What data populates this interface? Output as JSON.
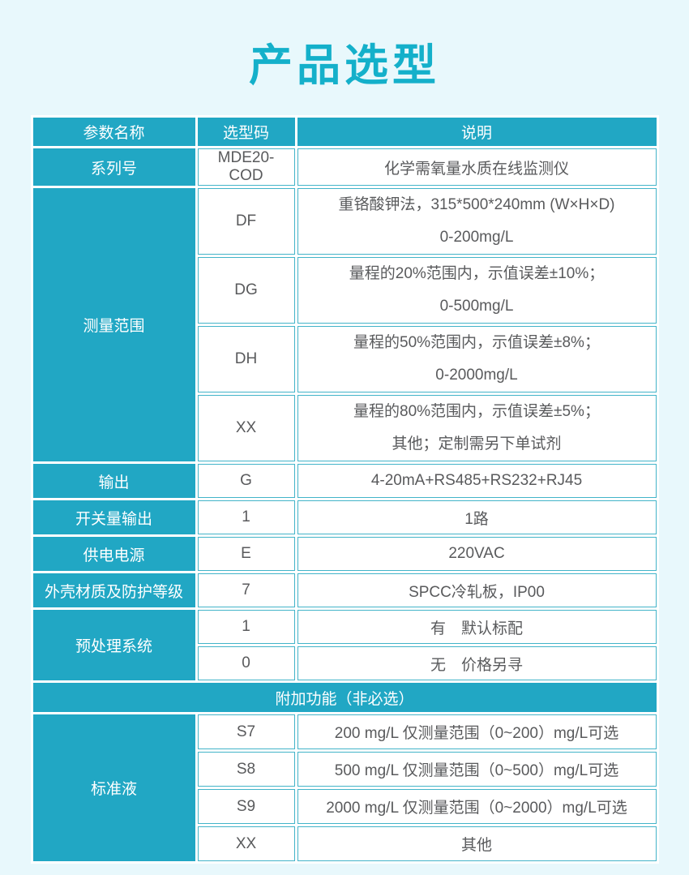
{
  "title": "产品选型",
  "colors": {
    "background": "#e8f8fc",
    "accent_teal": "#21a7c4",
    "title_teal": "#14b0ca",
    "cell_border": "#43b4c9",
    "body_text": "#595a5c"
  },
  "table": {
    "headers": [
      "参数名称",
      "选型码",
      "说明"
    ],
    "groups": [
      {
        "param": "系列号",
        "entries": [
          {
            "code": "MDE20-COD",
            "desc": [
              "化学需氧量水质在线监测仪"
            ]
          }
        ]
      },
      {
        "param": "测量范围",
        "entries": [
          {
            "code": "DF",
            "desc": [
              "重铬酸钾法，315*500*240mm (W×H×D)",
              "0-200mg/L"
            ]
          },
          {
            "code": "DG",
            "desc": [
              "量程的20%范围内，示值误差±10%；",
              "0-500mg/L"
            ]
          },
          {
            "code": "DH",
            "desc": [
              "量程的50%范围内，示值误差±8%；",
              "0-2000mg/L"
            ]
          },
          {
            "code": "XX",
            "desc": [
              "量程的80%范围内，示值误差±5%；",
              "其他；定制需另下单试剂"
            ]
          }
        ]
      },
      {
        "param": "输出",
        "entries": [
          {
            "code": "G",
            "desc": [
              "4-20mA+RS485+RS232+RJ45"
            ]
          }
        ]
      },
      {
        "param": "开关量输出",
        "entries": [
          {
            "code": "1",
            "desc": [
              "1路"
            ]
          }
        ]
      },
      {
        "param": "供电电源",
        "entries": [
          {
            "code": "E",
            "desc": [
              "220VAC"
            ]
          }
        ]
      },
      {
        "param": "外壳材质及防护等级",
        "entries": [
          {
            "code": "7",
            "desc": [
              "SPCC冷轧板，IP00"
            ]
          }
        ]
      },
      {
        "param": "预处理系统",
        "entries": [
          {
            "code": "1",
            "desc": [
              "有　默认标配"
            ]
          },
          {
            "code": "0",
            "desc": [
              "无　价格另寻"
            ]
          }
        ]
      }
    ],
    "section_row": "附加功能（非必选）",
    "groups_optional": [
      {
        "param": "标准液",
        "entries": [
          {
            "code": "S7",
            "desc": [
              "200 mg/L 仅测量范围（0~200）mg/L可选"
            ]
          },
          {
            "code": "S8",
            "desc": [
              "500 mg/L 仅测量范围（0~500）mg/L可选"
            ]
          },
          {
            "code": "S9",
            "desc": [
              "2000 mg/L 仅测量范围（0~2000）mg/L可选"
            ]
          },
          {
            "code": "XX",
            "desc": [
              "其他"
            ]
          }
        ]
      }
    ]
  }
}
